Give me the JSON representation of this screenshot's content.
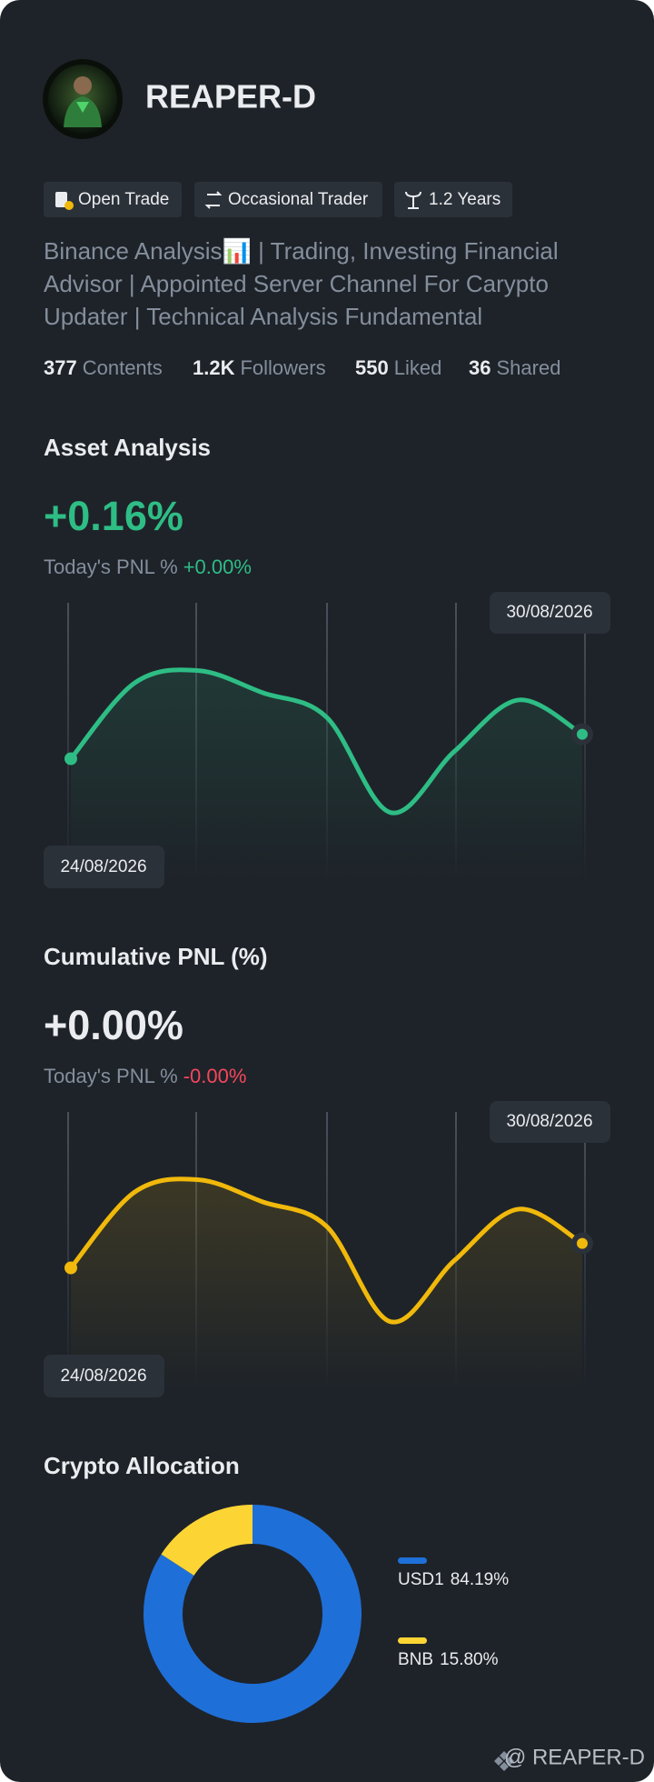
{
  "profile": {
    "name": "REAPER-D",
    "tags": [
      "Open Trade",
      "Occasional Trader",
      "1.2 Years"
    ],
    "bio_lines": [
      "Binance Analysis📊 | Trading, Investing Financial",
      "Advisor | Appointed  Server Channel For Carypto",
      "Updater | Technical Analysis Fundamental"
    ],
    "stats": [
      {
        "value": "377",
        "label": "Contents"
      },
      {
        "value": "1.2K",
        "label": "Followers"
      },
      {
        "value": "550",
        "label": "Liked"
      },
      {
        "value": "36",
        "label": "Shared"
      }
    ]
  },
  "asset_analysis": {
    "title": "Asset Analysis",
    "value": "+0.16%",
    "pnl_label": "Today's PNL %",
    "pnl_value": "+0.00%",
    "chart": {
      "type": "line",
      "start_date": "24/08/2026",
      "end_date": "30/08/2026",
      "values": [
        50,
        81,
        86,
        77,
        67,
        28,
        53,
        74,
        60
      ],
      "ylim": [
        0,
        100
      ],
      "color": "#2ebd85"
    }
  },
  "cumulative_pnl": {
    "title": "Cumulative PNL (%)",
    "value": "+0.00%",
    "pnl_label": "Today's PNL %",
    "pnl_value": "-0.00%",
    "chart": {
      "type": "line",
      "start_date": "24/08/2026",
      "end_date": "30/08/2026",
      "values": [
        50,
        81,
        86,
        77,
        67,
        28,
        53,
        74,
        60
      ],
      "ylim": [
        0,
        100
      ],
      "color": "#f0b90b"
    }
  },
  "crypto_allocation": {
    "title": "Crypto Allocation",
    "chart": {
      "type": "donut",
      "categories": [
        "USD1",
        "BNB"
      ],
      "values": [
        84.19,
        15.8
      ],
      "value_labels": [
        "84.19%",
        "15.80%"
      ],
      "colors": [
        "#1f6fd8",
        "#fcd535"
      ]
    }
  },
  "footer": "@ REAPER-D"
}
